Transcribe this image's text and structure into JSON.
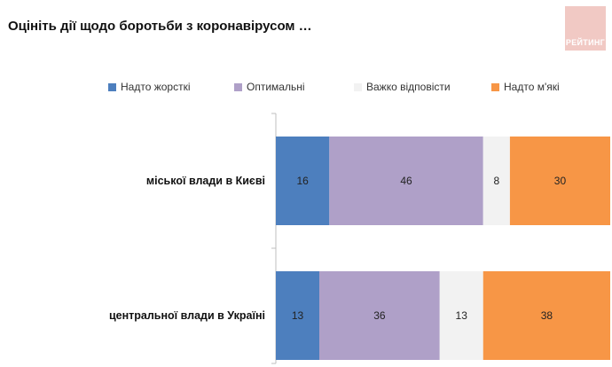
{
  "title": "Оцініть дії щодо боротьби з коронавірусом …",
  "logo_text": "РЕЙТИНГ",
  "colors": {
    "logo_bg": "#f1c9c4",
    "axis": "#bfbfbf"
  },
  "chart_data": {
    "type": "bar",
    "orientation": "horizontal",
    "stacked": true,
    "categories": [
      "міської влади в Києві",
      "центральної влади в Україні"
    ],
    "series": [
      {
        "name": "Надто жорсткі",
        "color": "#4d7fbe",
        "values": [
          16,
          13
        ]
      },
      {
        "name": "Оптимальні",
        "color": "#afa0c8",
        "values": [
          46,
          36
        ]
      },
      {
        "name": "Важко відповісти",
        "color": "#f2f2f2",
        "values": [
          8,
          13
        ]
      },
      {
        "name": "Надто м'які",
        "color": "#f79646",
        "values": [
          30,
          38
        ]
      }
    ],
    "xlim": [
      0,
      100
    ],
    "legend_position": "top",
    "grid": false
  }
}
